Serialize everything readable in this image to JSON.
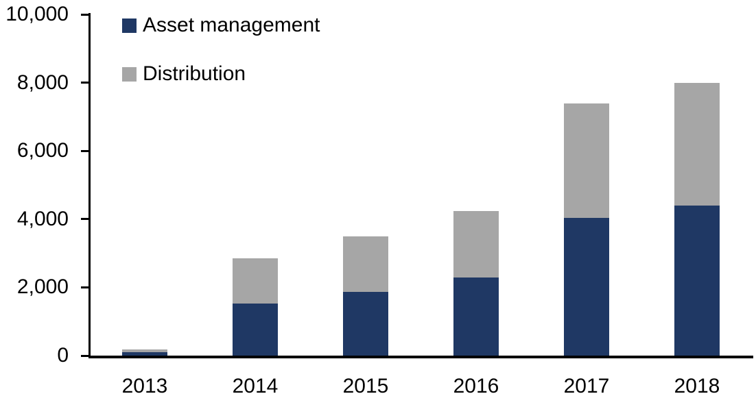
{
  "chart_data": {
    "type": "bar",
    "stacked": true,
    "title": "",
    "xlabel": "",
    "ylabel": "",
    "categories": [
      "2013",
      "2014",
      "2015",
      "2016",
      "2017",
      "2018"
    ],
    "series": [
      {
        "name": "Asset management",
        "color": "#1F3864",
        "values": [
          100,
          1520,
          1870,
          2290,
          4030,
          4400
        ]
      },
      {
        "name": "Distribution",
        "color": "#A6A6A6",
        "values": [
          80,
          1330,
          1630,
          1940,
          3350,
          3600
        ]
      }
    ],
    "totals": [
      180,
      2850,
      3500,
      4230,
      7380,
      8000
    ],
    "ylim": [
      0,
      10000
    ],
    "ytick_interval": 2000,
    "yticks": [
      0,
      2000,
      4000,
      6000,
      8000,
      10000
    ],
    "ytick_labels": [
      "0",
      "2,000",
      "4,000",
      "6,000",
      "8,000",
      "10,000"
    ],
    "legend_position": "top-left",
    "grid": false,
    "axis_color": "#000000",
    "background_color": "#FFFFFF"
  },
  "legend": {
    "items": [
      {
        "label": "Asset management",
        "color": "#1F3864"
      },
      {
        "label": "Distribution",
        "color": "#A6A6A6"
      }
    ]
  }
}
